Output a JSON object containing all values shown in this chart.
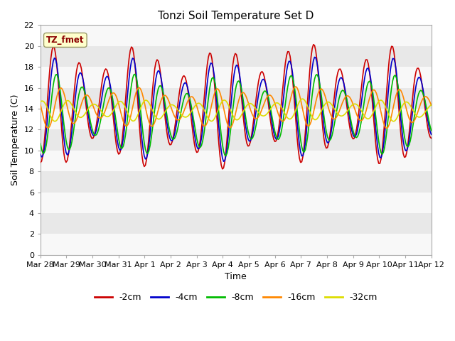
{
  "title": "Tonzi Soil Temperature Set D",
  "xlabel": "Time",
  "ylabel": "Soil Temperature (C)",
  "annotation": "TZ_fmet",
  "ylim": [
    0,
    22
  ],
  "yticks": [
    0,
    2,
    4,
    6,
    8,
    10,
    12,
    14,
    16,
    18,
    20,
    22
  ],
  "fig_facecolor": "#ffffff",
  "ax_facecolor": "#e8e8e8",
  "band_color": "#f8f8f8",
  "series": [
    {
      "label": "-2cm",
      "color": "#cc0000",
      "lw": 1.2
    },
    {
      "label": "-4cm",
      "color": "#0000cc",
      "lw": 1.2
    },
    {
      "label": "-8cm",
      "color": "#00bb00",
      "lw": 1.2
    },
    {
      "label": "-16cm",
      "color": "#ff8800",
      "lw": 1.2
    },
    {
      "label": "-32cm",
      "color": "#dddd00",
      "lw": 1.2
    }
  ],
  "xtick_labels": [
    "Mar 28",
    "Mar 29",
    "Mar 30",
    "Mar 31",
    "Apr 1",
    "Apr 2",
    "Apr 3",
    "Apr 4",
    "Apr 5",
    "Apr 6",
    "Apr 7",
    "Apr 8",
    "Apr 9",
    "Apr 10",
    "Apr 11",
    "Apr 12"
  ],
  "n_points": 336
}
